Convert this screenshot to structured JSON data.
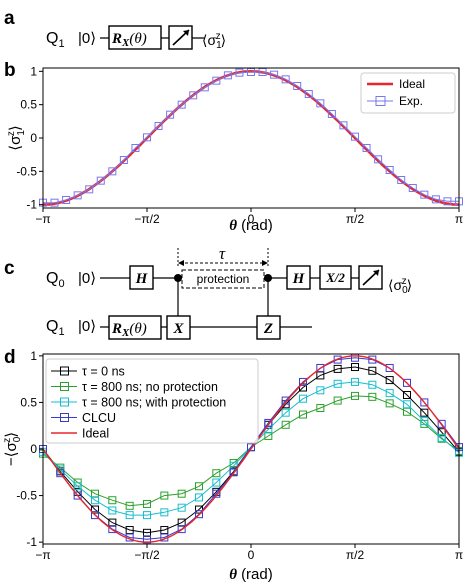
{
  "panels": {
    "a": "a",
    "b": "b",
    "c": "c",
    "d": "d"
  },
  "circuit_a": {
    "qubit": "Q",
    "qubit_sub": "1",
    "ket": "|0⟩",
    "gate_text": "R",
    "gate_sub": "X",
    "gate_arg": "(θ)",
    "out_left": "⟨σ",
    "out_sub": "1",
    "out_sup": "z",
    "out_right": "⟩"
  },
  "circuit_c": {
    "q0": "Q",
    "q0_sub": "0",
    "q1": "Q",
    "q1_sub": "1",
    "ket": "|0⟩",
    "h_gate": "H",
    "x2_gate": "X/2",
    "rx_text": "R",
    "rx_sub": "X",
    "rx_arg": "(θ)",
    "x_gate": "X",
    "z_gate": "Z",
    "tau": "τ",
    "protection": "protection",
    "out_left": "⟨σ",
    "out_sub": "0",
    "out_sup": "z",
    "out_right": "⟩"
  },
  "colors": {
    "ideal_b": "#e8262b",
    "exp_b": "#7777ee",
    "tau0": "#000000",
    "noprot": "#2ca02c",
    "prot": "#17becf",
    "clcu": "#3a3acc",
    "ideal_d": "#e8262b"
  },
  "chart_data": [
    {
      "type": "line",
      "panel": "b",
      "xlabel": "θ (rad)",
      "ylabel": "⟨σ₁ᶻ⟩",
      "xlim": [
        -3.1416,
        3.1416
      ],
      "ylim": [
        -1.05,
        1.05
      ],
      "xticks": [
        "−π",
        "−π/2",
        "0",
        "π/2",
        "π"
      ],
      "yticks": [
        "1",
        "0.5",
        "0",
        "-0.5",
        "-1"
      ],
      "grid": false,
      "legend": "top-right",
      "series": [
        {
          "name": "Ideal",
          "function": "cos(θ)",
          "style": "line"
        },
        {
          "name": "Exp.",
          "style": "markers-line",
          "x": [
            -3.1416,
            -2.9671,
            -2.7925,
            -2.618,
            -2.4435,
            -2.2689,
            -2.0944,
            -1.9199,
            -1.7453,
            -1.5708,
            -1.3963,
            -1.2217,
            -1.0472,
            -0.8727,
            -0.6981,
            -0.5236,
            -0.3491,
            -0.1745,
            0,
            0.1745,
            0.3491,
            0.5236,
            0.6981,
            0.8727,
            1.0472,
            1.2217,
            1.3963,
            1.5708,
            1.7453,
            1.9199,
            2.0944,
            2.2689,
            2.4435,
            2.618,
            2.7925,
            2.9671,
            3.1416
          ],
          "y": [
            -0.97,
            -0.97,
            -0.93,
            -0.86,
            -0.77,
            -0.64,
            -0.5,
            -0.33,
            -0.15,
            0.01,
            0.18,
            0.35,
            0.5,
            0.64,
            0.76,
            0.86,
            0.94,
            0.98,
            0.99,
            0.99,
            0.95,
            0.88,
            0.78,
            0.66,
            0.52,
            0.36,
            0.19,
            0.02,
            -0.15,
            -0.32,
            -0.48,
            -0.63,
            -0.75,
            -0.85,
            -0.92,
            -0.95,
            -0.95
          ]
        }
      ]
    },
    {
      "type": "line",
      "panel": "d",
      "xlabel": "θ (rad)",
      "ylabel": "−⟨σ₀ᶻ⟩",
      "xlim": [
        -3.1416,
        3.1416
      ],
      "ylim": [
        -1.02,
        1.02
      ],
      "xticks": [
        "−π",
        "−π/2",
        "0",
        "π/2",
        "π"
      ],
      "yticks": [
        "1",
        "0.5",
        "0",
        "-0.5",
        "-1"
      ],
      "grid": false,
      "legend": "top-left",
      "series": [
        {
          "name": "τ = 0 ns",
          "style": "markers-line",
          "x": [
            -3.1416,
            -2.8798,
            -2.618,
            -2.3562,
            -2.0944,
            -1.8326,
            -1.5708,
            -1.309,
            -1.0472,
            -0.7854,
            -0.5236,
            -0.2618,
            0,
            0.2618,
            0.5236,
            0.7854,
            1.0472,
            1.309,
            1.5708,
            1.8326,
            2.0944,
            2.3562,
            2.618,
            2.8798,
            3.1416
          ],
          "y": [
            0,
            -0.24,
            -0.46,
            -0.65,
            -0.79,
            -0.87,
            -0.9,
            -0.87,
            -0.79,
            -0.65,
            -0.46,
            -0.24,
            0.02,
            0.26,
            0.48,
            0.66,
            0.79,
            0.86,
            0.88,
            0.84,
            0.74,
            0.58,
            0.39,
            0.18,
            -0.03
          ]
        },
        {
          "name": "τ = 800 ns; no protection",
          "style": "markers-line",
          "x": [
            -3.1416,
            -2.8798,
            -2.618,
            -2.3562,
            -2.0944,
            -1.8326,
            -1.5708,
            -1.309,
            -1.0472,
            -0.7854,
            -0.5236,
            -0.2618,
            0,
            0.2618,
            0.5236,
            0.7854,
            1.0472,
            1.309,
            1.5708,
            1.8326,
            2.0944,
            2.3562,
            2.618,
            2.8798,
            3.1416
          ],
          "y": [
            -0.05,
            -0.2,
            -0.36,
            -0.48,
            -0.55,
            -0.61,
            -0.59,
            -0.5,
            -0.48,
            -0.4,
            -0.26,
            -0.15,
            0.02,
            0.14,
            0.26,
            0.37,
            0.44,
            0.52,
            0.57,
            0.56,
            0.49,
            0.4,
            0.27,
            0.11,
            -0.02
          ]
        },
        {
          "name": "τ = 800 ns; with protection",
          "style": "markers-line",
          "x": [
            -3.1416,
            -2.8798,
            -2.618,
            -2.3562,
            -2.0944,
            -1.8326,
            -1.5708,
            -1.309,
            -1.0472,
            -0.7854,
            -0.5236,
            -0.2618,
            0,
            0.2618,
            0.5236,
            0.7854,
            1.0472,
            1.309,
            1.5708,
            1.8326,
            2.0944,
            2.3562,
            2.618,
            2.8798,
            3.1416
          ],
          "y": [
            -0.03,
            -0.22,
            -0.4,
            -0.55,
            -0.66,
            -0.71,
            -0.71,
            -0.68,
            -0.63,
            -0.52,
            -0.36,
            -0.18,
            0.02,
            0.21,
            0.39,
            0.54,
            0.63,
            0.7,
            0.72,
            0.69,
            0.6,
            0.48,
            0.3,
            0.12,
            -0.04
          ]
        },
        {
          "name": "CLCU",
          "style": "markers-line",
          "x": [
            -3.1416,
            -2.8798,
            -2.618,
            -2.3562,
            -2.0944,
            -1.8326,
            -1.5708,
            -1.309,
            -1.0472,
            -0.7854,
            -0.5236,
            -0.2618,
            0,
            0.2618,
            0.5236,
            0.7854,
            1.0472,
            1.309,
            1.5708,
            1.8326,
            2.0944,
            2.3562,
            2.618,
            2.8798,
            3.1416
          ],
          "y": [
            0,
            -0.26,
            -0.5,
            -0.71,
            -0.86,
            -0.95,
            -0.97,
            -0.95,
            -0.86,
            -0.7,
            -0.48,
            -0.25,
            0.02,
            0.28,
            0.52,
            0.72,
            0.87,
            0.96,
            0.98,
            0.96,
            0.87,
            0.71,
            0.5,
            0.27,
            0.02
          ]
        },
        {
          "name": "Ideal",
          "function": "sin(θ)",
          "style": "line"
        }
      ]
    }
  ]
}
